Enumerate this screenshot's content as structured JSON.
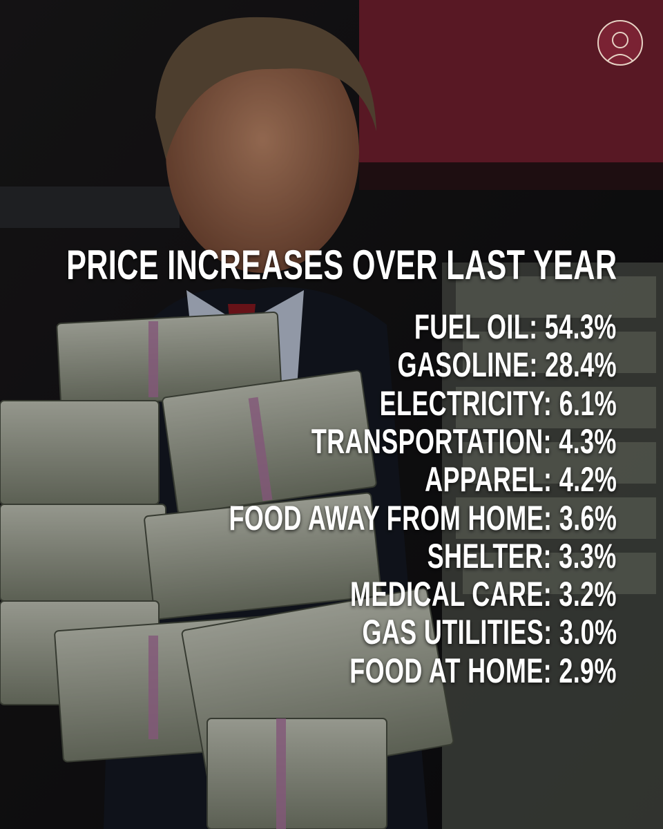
{
  "header": {
    "title": "PRICE INCREASES OVER LAST YEAR"
  },
  "items": [
    "FUEL OIL: 54.3%",
    "GASOLINE: 28.4%",
    "ELECTRICITY: 6.1%",
    "TRANSPORTATION: 4.3%",
    "APPAREL: 4.2%",
    "FOOD AWAY FROM HOME: 3.6%",
    "SHELTER: 3.3%",
    "MEDICAL CARE: 3.2%",
    "GAS UTILITIES: 3.0%",
    "FOOD AT HOME: 2.9%"
  ]
}
